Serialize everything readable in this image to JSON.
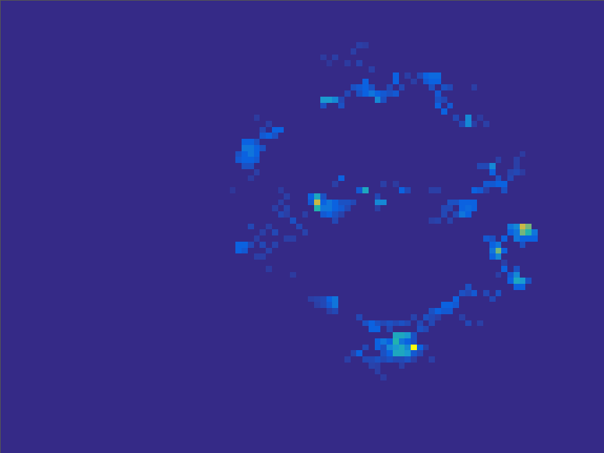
{
  "chart_data": {
    "type": "heatmap",
    "xlim": [
      0,
      100
    ],
    "ylim": [
      75,
      0
    ],
    "zlim": [
      0,
      1
    ],
    "tick_labels": false,
    "cells": [
      [
        59,
        7,
        0.1
      ],
      [
        60,
        7,
        0.08
      ],
      [
        53,
        9,
        0.08
      ],
      [
        55,
        9,
        0.1
      ],
      [
        58,
        8,
        0.1
      ],
      [
        57,
        10,
        0.08
      ],
      [
        59,
        10,
        0.12
      ],
      [
        61,
        11,
        0.1
      ],
      [
        54,
        10,
        0.06
      ],
      [
        58,
        14,
        0.2
      ],
      [
        59,
        14,
        0.25
      ],
      [
        60,
        13,
        0.3
      ],
      [
        60,
        14,
        0.3
      ],
      [
        61,
        14,
        0.2
      ],
      [
        62,
        15,
        0.3
      ],
      [
        61,
        15,
        0.35
      ],
      [
        60,
        15,
        0.3
      ],
      [
        59,
        15,
        0.2
      ],
      [
        62,
        16,
        0.4
      ],
      [
        63,
        15,
        0.25
      ],
      [
        63,
        16,
        0.2
      ],
      [
        64,
        15,
        0.2
      ],
      [
        65,
        15,
        0.25
      ],
      [
        65,
        12,
        0.3
      ],
      [
        65,
        13,
        0.3
      ],
      [
        64,
        14,
        0.15
      ],
      [
        66,
        14,
        0.15
      ],
      [
        57,
        15,
        0.15
      ],
      [
        56,
        16,
        0.15
      ],
      [
        53,
        16,
        0.45
      ],
      [
        54,
        16,
        0.45
      ],
      [
        55,
        16,
        0.4
      ],
      [
        53,
        17,
        0.2
      ],
      [
        56,
        17,
        0.2
      ],
      [
        69,
        12,
        0.15
      ],
      [
        70,
        12,
        0.3
      ],
      [
        71,
        12,
        0.32
      ],
      [
        72,
        12,
        0.32
      ],
      [
        70,
        13,
        0.25
      ],
      [
        71,
        13,
        0.3
      ],
      [
        72,
        13,
        0.3
      ],
      [
        73,
        14,
        0.2
      ],
      [
        74,
        14,
        0.15
      ],
      [
        71,
        14,
        0.2
      ],
      [
        72,
        15,
        0.25
      ],
      [
        72,
        16,
        0.2
      ],
      [
        72,
        17,
        0.3
      ],
      [
        73,
        18,
        0.3
      ],
      [
        74,
        17,
        0.25
      ],
      [
        73,
        16,
        0.15
      ],
      [
        75,
        19,
        0.15
      ],
      [
        76,
        20,
        0.15
      ],
      [
        78,
        14,
        0.1
      ],
      [
        77,
        19,
        0.4
      ],
      [
        77,
        20,
        0.4
      ],
      [
        78,
        20,
        0.1
      ],
      [
        80,
        20,
        0.1
      ],
      [
        79,
        19,
        0.08
      ],
      [
        68,
        13,
        0.1
      ],
      [
        67,
        12,
        0.1
      ],
      [
        45,
        21,
        0.3
      ],
      [
        46,
        21,
        0.3
      ],
      [
        44,
        22,
        0.3
      ],
      [
        45,
        22,
        0.2
      ],
      [
        43,
        22,
        0.25
      ],
      [
        40,
        23,
        0.3
      ],
      [
        41,
        23,
        0.3
      ],
      [
        42,
        23,
        0.2
      ],
      [
        40,
        24,
        0.35
      ],
      [
        41,
        24,
        0.35
      ],
      [
        42,
        24,
        0.3
      ],
      [
        43,
        24,
        0.2
      ],
      [
        39,
        25,
        0.2
      ],
      [
        40,
        25,
        0.3
      ],
      [
        41,
        25,
        0.35
      ],
      [
        42,
        25,
        0.3
      ],
      [
        39,
        26,
        0.25
      ],
      [
        40,
        26,
        0.3
      ],
      [
        41,
        26,
        0.3
      ],
      [
        42,
        26,
        0.25
      ],
      [
        40,
        27,
        0.2
      ],
      [
        41,
        27,
        0.2
      ],
      [
        42,
        28,
        0.1
      ],
      [
        41,
        29,
        0.08
      ],
      [
        42,
        19,
        0.08
      ],
      [
        44,
        20,
        0.1
      ],
      [
        43,
        21,
        0.15
      ],
      [
        38,
        31,
        0.06
      ],
      [
        45,
        34,
        0.1
      ],
      [
        46,
        33,
        0.1
      ],
      [
        47,
        34,
        0.12
      ],
      [
        46,
        35,
        0.15
      ],
      [
        47,
        35,
        0.1
      ],
      [
        48,
        36,
        0.2
      ],
      [
        49,
        37,
        0.15
      ],
      [
        50,
        38,
        0.12
      ],
      [
        44,
        37,
        0.1
      ],
      [
        45,
        38,
        0.15
      ],
      [
        43,
        38,
        0.1
      ],
      [
        41,
        37,
        0.15
      ],
      [
        42,
        39,
        0.1
      ],
      [
        43,
        40,
        0.15
      ],
      [
        44,
        41,
        0.12
      ],
      [
        39,
        40,
        0.3
      ],
      [
        40,
        40,
        0.3
      ],
      [
        39,
        41,
        0.3
      ],
      [
        40,
        41,
        0.25
      ],
      [
        41,
        40,
        0.15
      ],
      [
        42,
        42,
        0.1
      ],
      [
        43,
        42,
        0.1
      ],
      [
        45,
        40,
        0.12
      ],
      [
        47,
        39,
        0.1
      ],
      [
        48,
        39,
        0.1
      ],
      [
        48,
        45,
        0.08
      ],
      [
        44,
        44,
        0.08
      ],
      [
        46,
        31,
        0.08
      ],
      [
        47,
        32,
        0.1
      ],
      [
        51,
        32,
        0.3
      ],
      [
        52,
        32,
        0.5
      ],
      [
        53,
        32,
        0.2
      ],
      [
        51,
        33,
        0.25
      ],
      [
        52,
        33,
        0.65
      ],
      [
        53,
        33,
        0.3
      ],
      [
        54,
        33,
        0.35
      ],
      [
        55,
        33,
        0.3
      ],
      [
        56,
        33,
        0.2
      ],
      [
        52,
        34,
        0.55
      ],
      [
        53,
        34,
        0.35
      ],
      [
        54,
        34,
        0.35
      ],
      [
        55,
        34,
        0.3
      ],
      [
        56,
        34,
        0.25
      ],
      [
        53,
        35,
        0.25
      ],
      [
        54,
        35,
        0.3
      ],
      [
        55,
        35,
        0.2
      ],
      [
        57,
        34,
        0.15
      ],
      [
        56,
        35,
        0.12
      ],
      [
        50,
        35,
        0.1
      ],
      [
        55,
        36,
        0.15
      ],
      [
        57,
        33,
        0.2
      ],
      [
        58,
        33,
        0.15
      ],
      [
        56,
        29,
        0.3
      ],
      [
        55,
        30,
        0.1
      ],
      [
        60,
        31,
        0.5
      ],
      [
        59,
        31,
        0.25
      ],
      [
        62,
        33,
        0.4
      ],
      [
        63,
        33,
        0.4
      ],
      [
        66,
        31,
        0.3
      ],
      [
        67,
        31,
        0.15
      ],
      [
        63,
        30,
        0.1
      ],
      [
        65,
        30,
        0.08
      ],
      [
        62,
        34,
        0.1
      ],
      [
        62,
        32,
        0.15
      ],
      [
        71,
        31,
        0.1
      ],
      [
        72,
        31,
        0.1
      ],
      [
        74,
        33,
        0.2
      ],
      [
        75,
        33,
        0.2
      ],
      [
        76,
        33,
        0.3
      ],
      [
        77,
        33,
        0.3
      ],
      [
        78,
        33,
        0.3
      ],
      [
        76,
        34,
        0.3
      ],
      [
        77,
        34,
        0.32
      ],
      [
        78,
        34,
        0.3
      ],
      [
        76,
        35,
        0.35
      ],
      [
        77,
        35,
        0.3
      ],
      [
        74,
        34,
        0.15
      ],
      [
        75,
        35,
        0.15
      ],
      [
        73,
        34,
        0.15
      ],
      [
        73,
        35,
        0.15
      ],
      [
        72,
        36,
        0.12
      ],
      [
        71,
        36,
        0.1
      ],
      [
        74,
        36,
        0.12
      ],
      [
        78,
        31,
        0.3
      ],
      [
        79,
        31,
        0.25
      ],
      [
        80,
        31,
        0.1
      ],
      [
        79,
        27,
        0.15
      ],
      [
        80,
        27,
        0.15
      ],
      [
        81,
        27,
        0.4
      ],
      [
        81,
        28,
        0.3
      ],
      [
        82,
        29,
        0.2
      ],
      [
        80,
        30,
        0.25
      ],
      [
        81,
        30,
        0.25
      ],
      [
        82,
        30,
        0.3
      ],
      [
        83,
        30,
        0.3
      ],
      [
        83,
        31,
        0.2
      ],
      [
        84,
        29,
        0.15
      ],
      [
        85,
        28,
        0.15
      ],
      [
        85,
        27,
        0.1
      ],
      [
        84,
        28,
        0.12
      ],
      [
        86,
        25,
        0.08
      ],
      [
        85,
        26,
        0.1
      ],
      [
        82,
        26,
        0.1
      ],
      [
        86,
        28,
        0.08
      ],
      [
        80,
        39,
        0.25
      ],
      [
        81,
        39,
        0.2
      ],
      [
        81,
        40,
        0.3
      ],
      [
        82,
        40,
        0.35
      ],
      [
        83,
        39,
        0.3
      ],
      [
        84,
        38,
        0.3
      ],
      [
        84,
        37,
        0.35
      ],
      [
        85,
        37,
        0.4
      ],
      [
        86,
        37,
        0.65
      ],
      [
        87,
        37,
        0.6
      ],
      [
        85,
        38,
        0.35
      ],
      [
        86,
        38,
        0.6
      ],
      [
        87,
        38,
        0.55
      ],
      [
        88,
        38,
        0.35
      ],
      [
        85,
        39,
        0.35
      ],
      [
        86,
        39,
        0.3
      ],
      [
        87,
        39,
        0.3
      ],
      [
        88,
        39,
        0.3
      ],
      [
        86,
        40,
        0.2
      ],
      [
        81,
        41,
        0.35
      ],
      [
        82,
        41,
        0.6
      ],
      [
        83,
        41,
        0.3
      ],
      [
        81,
        42,
        0.3
      ],
      [
        82,
        42,
        0.4
      ],
      [
        83,
        43,
        0.1
      ],
      [
        83,
        44,
        0.3
      ],
      [
        84,
        45,
        0.25
      ],
      [
        85,
        44,
        0.2
      ],
      [
        84,
        46,
        0.3
      ],
      [
        85,
        45,
        0.4
      ],
      [
        85,
        46,
        0.5
      ],
      [
        86,
        46,
        0.45
      ],
      [
        86,
        47,
        0.3
      ],
      [
        85,
        47,
        0.3
      ],
      [
        87,
        46,
        0.2
      ],
      [
        82,
        45,
        0.1
      ],
      [
        82,
        48,
        0.2
      ],
      [
        81,
        49,
        0.15
      ],
      [
        51,
        49,
        0.1
      ],
      [
        52,
        49,
        0.12
      ],
      [
        53,
        49,
        0.15
      ],
      [
        54,
        49,
        0.3
      ],
      [
        55,
        49,
        0.35
      ],
      [
        54,
        50,
        0.25
      ],
      [
        55,
        50,
        0.35
      ],
      [
        53,
        50,
        0.15
      ],
      [
        52,
        50,
        0.1
      ],
      [
        55,
        51,
        0.15
      ],
      [
        54,
        51,
        0.1
      ],
      [
        77,
        47,
        0.2
      ],
      [
        78,
        48,
        0.25
      ],
      [
        80,
        48,
        0.15
      ],
      [
        76,
        48,
        0.2
      ],
      [
        77,
        48,
        0.15
      ],
      [
        75,
        49,
        0.3
      ],
      [
        74,
        50,
        0.3
      ],
      [
        73,
        50,
        0.3
      ],
      [
        74,
        51,
        0.25
      ],
      [
        75,
        50,
        0.25
      ],
      [
        72,
        51,
        0.3
      ],
      [
        73,
        51,
        0.25
      ],
      [
        71,
        51,
        0.2
      ],
      [
        70,
        52,
        0.2
      ],
      [
        71,
        52,
        0.15
      ],
      [
        72,
        52,
        0.1
      ],
      [
        68,
        52,
        0.12
      ],
      [
        77,
        53,
        0.15
      ],
      [
        79,
        53,
        0.1
      ],
      [
        76,
        52,
        0.1
      ],
      [
        59,
        52,
        0.15
      ],
      [
        60,
        53,
        0.2
      ],
      [
        61,
        53,
        0.3
      ],
      [
        62,
        53,
        0.2
      ],
      [
        61,
        54,
        0.3
      ],
      [
        62,
        54,
        0.3
      ],
      [
        63,
        53,
        0.15
      ],
      [
        64,
        53,
        0.2
      ],
      [
        65,
        53,
        0.15
      ],
      [
        66,
        53,
        0.2
      ],
      [
        67,
        53,
        0.15
      ],
      [
        69,
        53,
        0.15
      ],
      [
        69,
        54,
        0.2
      ],
      [
        70,
        54,
        0.15
      ],
      [
        71,
        53,
        0.15
      ],
      [
        64,
        54,
        0.15
      ],
      [
        65,
        55,
        0.5
      ],
      [
        66,
        55,
        0.5
      ],
      [
        67,
        55,
        0.45
      ],
      [
        68,
        55,
        0.2
      ],
      [
        62,
        56,
        0.3
      ],
      [
        63,
        56,
        0.35
      ],
      [
        64,
        56,
        0.3
      ],
      [
        65,
        56,
        0.55
      ],
      [
        66,
        56,
        0.35
      ],
      [
        67,
        56,
        0.3
      ],
      [
        68,
        56,
        0.2
      ],
      [
        62,
        57,
        0.3
      ],
      [
        63,
        57,
        0.2
      ],
      [
        64,
        57,
        0.4
      ],
      [
        65,
        57,
        0.45
      ],
      [
        66,
        57,
        0.5
      ],
      [
        67,
        57,
        0.4
      ],
      [
        68,
        57,
        1.0
      ],
      [
        69,
        57,
        0.3
      ],
      [
        70,
        57,
        0.1
      ],
      [
        65,
        58,
        0.5
      ],
      [
        66,
        58,
        0.5
      ],
      [
        67,
        58,
        0.45
      ],
      [
        64,
        58,
        0.3
      ],
      [
        63,
        58,
        0.2
      ],
      [
        68,
        58,
        0.25
      ],
      [
        69,
        58,
        0.15
      ],
      [
        71,
        59,
        0.1
      ],
      [
        59,
        58,
        0.3
      ],
      [
        58,
        58,
        0.12
      ],
      [
        57,
        59,
        0.1
      ],
      [
        60,
        59,
        0.15
      ],
      [
        61,
        59,
        0.15
      ],
      [
        62,
        59,
        0.2
      ],
      [
        63,
        59,
        0.15
      ],
      [
        64,
        59,
        0.2
      ],
      [
        65,
        59,
        0.15
      ],
      [
        66,
        59,
        0.15
      ],
      [
        67,
        59,
        0.2
      ],
      [
        68,
        59,
        0.1
      ],
      [
        61,
        60,
        0.12
      ],
      [
        62,
        60,
        0.1
      ],
      [
        66,
        60,
        0.1
      ],
      [
        62,
        61,
        0.1
      ],
      [
        63,
        62,
        0.08
      ],
      [
        60,
        57,
        0.15
      ]
    ]
  }
}
